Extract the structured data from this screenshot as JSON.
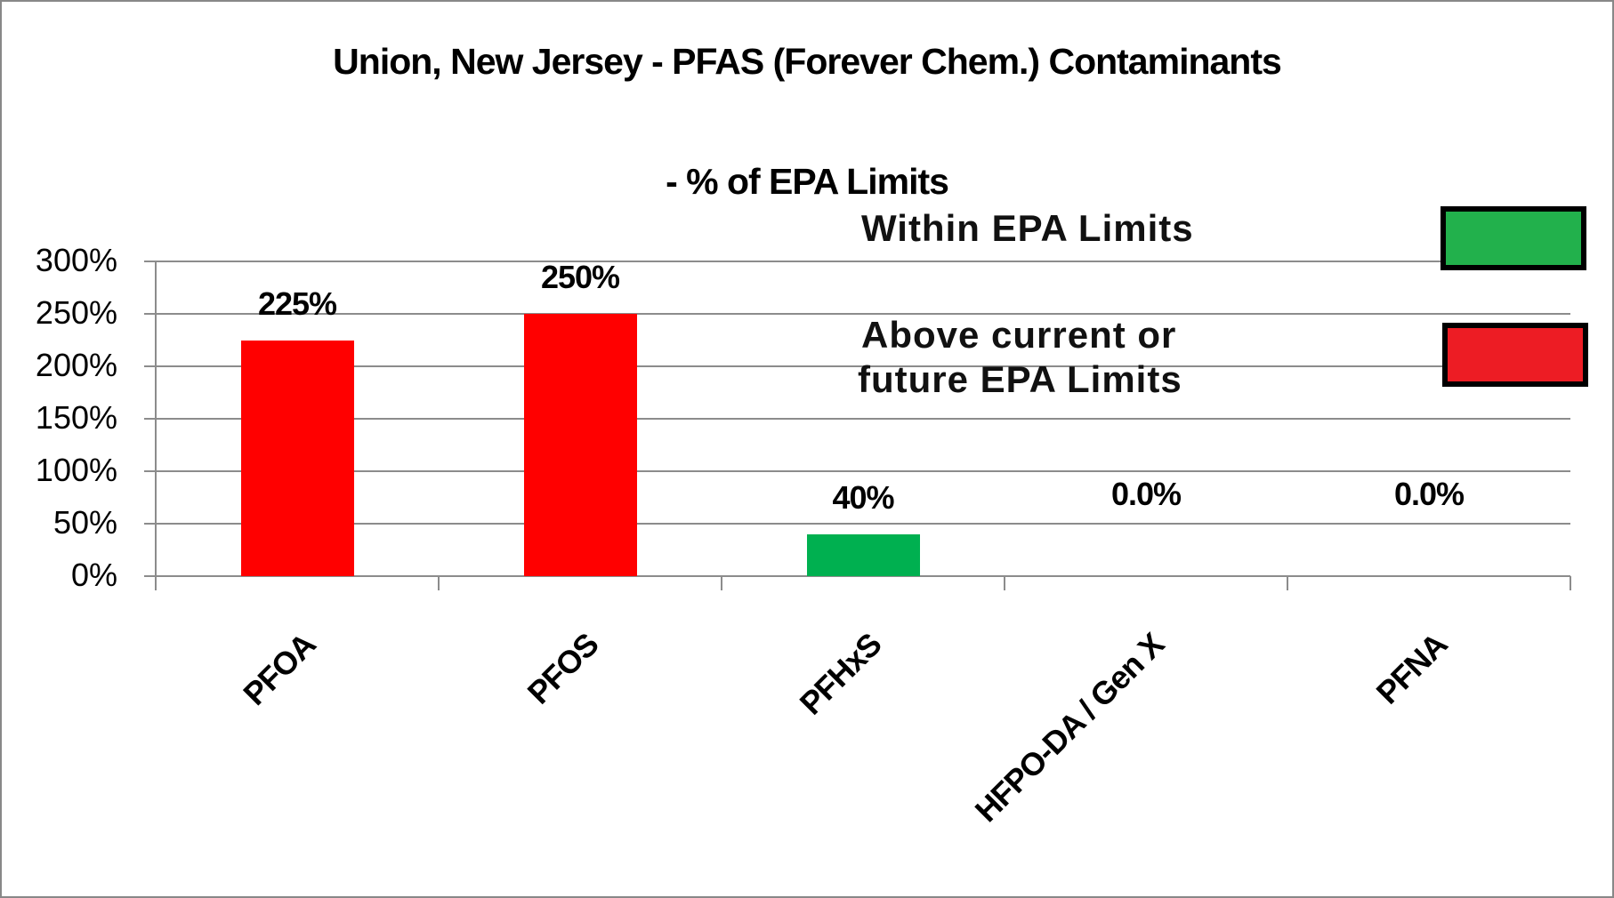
{
  "chart_data": {
    "type": "bar",
    "title": "Union, New Jersey - PFAS (Forever Chem.) Contaminants",
    "subtitle": "- % of EPA Limits",
    "xlabel": "",
    "ylabel": "",
    "ylim": [
      0,
      300
    ],
    "yticks": [
      "0%",
      "50%",
      "100%",
      "150%",
      "200%",
      "250%",
      "300%"
    ],
    "grid": true,
    "legend_position": "top-right",
    "categories": [
      "PFOA",
      "PFOS",
      "PFHxS",
      "HFPO-DA / Gen X",
      "PFNA"
    ],
    "values": [
      225,
      250,
      40,
      0,
      0
    ],
    "data_labels": [
      "225%",
      "250%",
      "40%",
      "0.0%",
      "0.0%"
    ],
    "bar_colors": [
      "#ff0000",
      "#ff0000",
      "#00b050",
      "#ff0000",
      "#ff0000"
    ],
    "legend": [
      {
        "label": "Within  EPA Limits",
        "color": "#22b14c"
      },
      {
        "label": "Above current or future EPA Limits",
        "line1": "Above current or",
        "line2": "future EPA Limits",
        "color": "#ed1c24"
      }
    ]
  }
}
